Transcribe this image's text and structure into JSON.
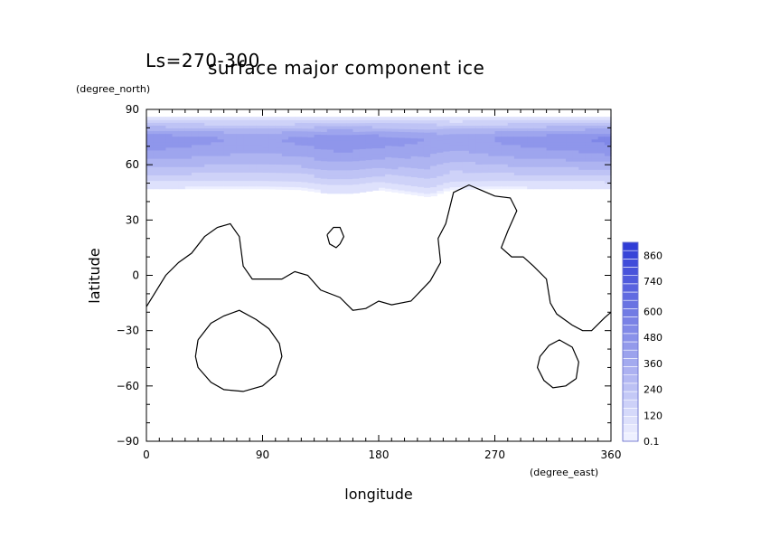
{
  "chart_data": {
    "type": "heatmap",
    "title": "surface major component ice",
    "subtitle": "Ls=270-300",
    "xlabel": "longitude",
    "ylabel": "latitude",
    "x_units": "(degree_east)",
    "y_units": "(degree_north)",
    "xlim": [
      0,
      360
    ],
    "ylim": [
      -90,
      90
    ],
    "x_ticks": [
      0,
      90,
      180,
      270,
      360
    ],
    "y_ticks": [
      90,
      60,
      30,
      0,
      -30,
      -60,
      -90
    ],
    "x_tick_labels": [
      "0",
      "90",
      "180",
      "270",
      "360"
    ],
    "y_tick_labels": [
      "90",
      "60",
      "30",
      "0",
      "−30",
      "−60",
      "−90"
    ],
    "grid": false,
    "colorbar": {
      "min": 0.1,
      "max": 920,
      "tick_values": [
        860,
        740,
        600,
        480,
        360,
        240,
        120,
        0.1
      ],
      "tick_labels": [
        "860",
        "740",
        "600",
        "480",
        "360",
        "240",
        "120",
        "0.1"
      ],
      "low_color": "#eef0ff",
      "high_color": "#2f3cd6"
    },
    "colors": {
      "ice_light": "#dfe2ff",
      "ice_mid": "#a9b1f6",
      "ice_dark": "#8e98f0",
      "contour": "#000000"
    },
    "ice_field": {
      "lat_edge_south": [
        [
          0,
          47
        ],
        [
          30,
          47
        ],
        [
          60,
          47
        ],
        [
          90,
          47
        ],
        [
          120,
          46.5
        ],
        [
          140,
          44.5
        ],
        [
          160,
          44.5
        ],
        [
          180,
          46.5
        ],
        [
          200,
          44.5
        ],
        [
          220,
          42.5
        ],
        [
          235,
          46.5
        ],
        [
          270,
          47
        ],
        [
          300,
          47
        ],
        [
          330,
          47
        ],
        [
          360,
          47
        ]
      ],
      "lat_edge_north": 86,
      "lat_peak": 74,
      "peak_value_by_lon": [
        [
          0,
          520
        ],
        [
          40,
          480
        ],
        [
          90,
          440
        ],
        [
          150,
          520
        ],
        [
          200,
          480
        ],
        [
          240,
          420
        ],
        [
          280,
          480
        ],
        [
          330,
          520
        ],
        [
          360,
          560
        ]
      ]
    },
    "contours": [
      {
        "name": "continental-outline",
        "points": [
          [
            0,
            -17
          ],
          [
            15,
            0
          ],
          [
            25,
            7
          ],
          [
            35,
            12
          ],
          [
            45,
            21
          ],
          [
            55,
            26
          ],
          [
            65,
            28
          ],
          [
            72,
            21
          ],
          [
            75,
            5
          ],
          [
            82,
            -2
          ],
          [
            90,
            -2
          ],
          [
            105,
            -2
          ],
          [
            115,
            2
          ],
          [
            125,
            0
          ],
          [
            135,
            -8
          ],
          [
            150,
            -12
          ],
          [
            160,
            -19
          ],
          [
            170,
            -18
          ],
          [
            180,
            -14
          ],
          [
            190,
            -16
          ],
          [
            205,
            -14
          ],
          [
            220,
            -3
          ],
          [
            228,
            7
          ],
          [
            226,
            20
          ],
          [
            232,
            28
          ],
          [
            238,
            45
          ],
          [
            250,
            49
          ],
          [
            260,
            46
          ],
          [
            270,
            43
          ],
          [
            282,
            42
          ],
          [
            287,
            35
          ],
          [
            280,
            24
          ],
          [
            275,
            15
          ],
          [
            283,
            10
          ],
          [
            292,
            10
          ],
          [
            300,
            5
          ],
          [
            310,
            -2
          ],
          [
            313,
            -15
          ],
          [
            318,
            -21
          ],
          [
            330,
            -27
          ],
          [
            338,
            -30
          ],
          [
            345,
            -30
          ],
          [
            355,
            -23
          ],
          [
            360,
            -20
          ]
        ]
      },
      {
        "name": "small-island",
        "points": [
          [
            140,
            22
          ],
          [
            145,
            26
          ],
          [
            150,
            26
          ],
          [
            153,
            21
          ],
          [
            150,
            17
          ],
          [
            147,
            15
          ],
          [
            142,
            17
          ],
          [
            140,
            22
          ]
        ]
      },
      {
        "name": "southwest-basin",
        "points": [
          [
            40,
            -35
          ],
          [
            50,
            -26
          ],
          [
            60,
            -22
          ],
          [
            72,
            -19
          ],
          [
            85,
            -24
          ],
          [
            95,
            -29
          ],
          [
            103,
            -37
          ],
          [
            105,
            -44
          ],
          [
            100,
            -54
          ],
          [
            90,
            -60
          ],
          [
            75,
            -63
          ],
          [
            60,
            -62
          ],
          [
            50,
            -58
          ],
          [
            40,
            -50
          ],
          [
            38,
            -44
          ],
          [
            40,
            -35
          ]
        ]
      },
      {
        "name": "southeast-basin",
        "points": [
          [
            305,
            -44
          ],
          [
            312,
            -38
          ],
          [
            320,
            -35
          ],
          [
            330,
            -39
          ],
          [
            335,
            -47
          ],
          [
            333,
            -56
          ],
          [
            325,
            -60
          ],
          [
            315,
            -61
          ],
          [
            308,
            -57
          ],
          [
            303,
            -50
          ],
          [
            305,
            -44
          ]
        ]
      }
    ]
  }
}
